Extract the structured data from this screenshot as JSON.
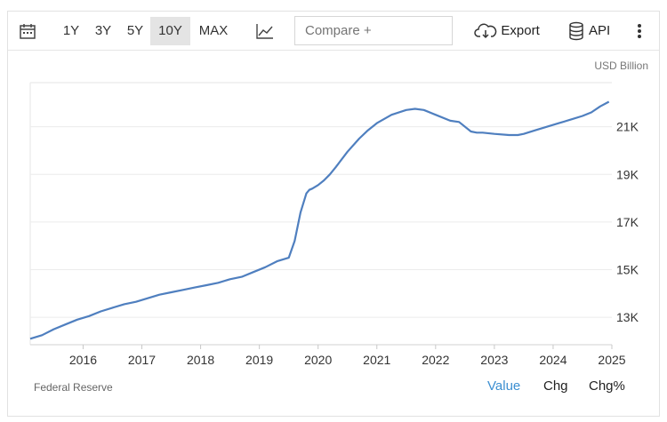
{
  "toolbar": {
    "calendar_icon": "calendar-icon",
    "ranges": [
      "1Y",
      "3Y",
      "5Y",
      "10Y",
      "MAX"
    ],
    "active_range": "10Y",
    "chart_type_icon": "line-chart-icon",
    "compare_placeholder": "Compare +",
    "export_label": "Export",
    "export_icon": "cloud-download-icon",
    "api_label": "API",
    "api_icon": "database-icon",
    "more_icon": "vertical-ellipsis-icon"
  },
  "unit_label": "USD Billion",
  "source": "Federal Reserve",
  "view_tabs": [
    "Value",
    "Chg",
    "Chg%"
  ],
  "active_view": "Value",
  "colors": {
    "line": "#4f7fbf",
    "active_tab": "#3c8fd1",
    "grid": "#e6e6e6"
  },
  "chart_data": {
    "type": "line",
    "title": "",
    "xlabel": "",
    "ylabel": "",
    "x_tick_labels": [
      "2016",
      "2017",
      "2018",
      "2019",
      "2020",
      "2021",
      "2022",
      "2023",
      "2024",
      "2025"
    ],
    "y_tick_labels": [
      "13K",
      "15K",
      "17K",
      "19K",
      "21K"
    ],
    "y_ticks": [
      13000,
      15000,
      17000,
      19000,
      21000
    ],
    "xlim": [
      2015.6,
      2025.5
    ],
    "ylim": [
      11850,
      22850
    ],
    "grid": "y",
    "series": [
      {
        "x": [
          2015.6,
          2015.8,
          2016.0,
          2016.2,
          2016.4,
          2016.6,
          2016.8,
          2017.0,
          2017.2,
          2017.4,
          2017.6,
          2017.8,
          2018.0,
          2018.2,
          2018.4,
          2018.6,
          2018.8,
          2019.0,
          2019.2,
          2019.4,
          2019.6,
          2019.8,
          2020.0,
          2020.1,
          2020.2,
          2020.3,
          2020.35,
          2020.4,
          2020.5,
          2020.6,
          2020.7,
          2020.8,
          2021.0,
          2021.2,
          2021.35,
          2021.5,
          2021.75,
          2022.0,
          2022.15,
          2022.3,
          2022.5,
          2022.75,
          2022.9,
          2023.1,
          2023.2,
          2023.3,
          2023.5,
          2023.75,
          2023.9,
          2024.0,
          2024.2,
          2024.4,
          2024.6,
          2024.8,
          2025.0,
          2025.15,
          2025.3,
          2025.45
        ],
        "values": [
          12100,
          12250,
          12500,
          12700,
          12900,
          13050,
          13250,
          13400,
          13550,
          13650,
          13800,
          13950,
          14050,
          14150,
          14250,
          14350,
          14450,
          14600,
          14700,
          14900,
          15100,
          15350,
          15500,
          16200,
          17400,
          18200,
          18350,
          18400,
          18550,
          18750,
          19000,
          19300,
          19950,
          20500,
          20850,
          21150,
          21500,
          21700,
          21750,
          21700,
          21500,
          21250,
          21200,
          20800,
          20750,
          20750,
          20700,
          20650,
          20650,
          20700,
          20850,
          21000,
          21150,
          21300,
          21450,
          21600,
          21850,
          22050
        ]
      }
    ]
  }
}
